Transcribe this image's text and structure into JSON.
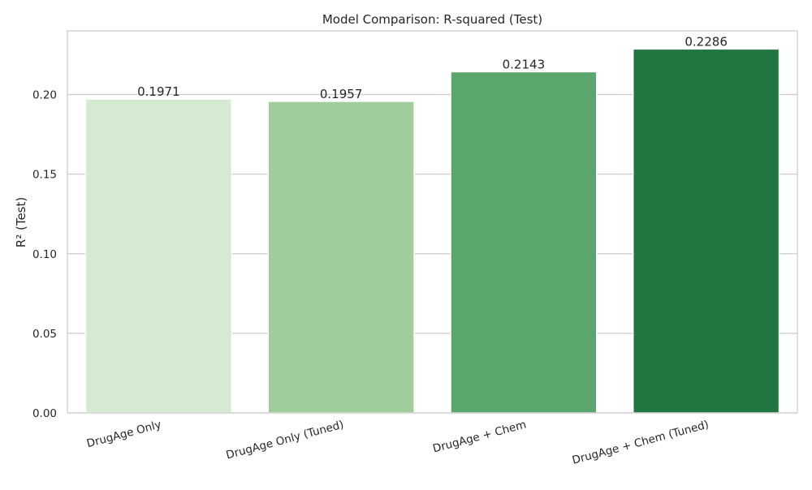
{
  "chart_data": {
    "type": "bar",
    "title": "Model Comparison: R-squared (Test)",
    "xlabel": "",
    "ylabel": "R² (Test)",
    "categories": [
      "DrugAge Only",
      "DrugAge Only (Tuned)",
      "DrugAge + Chem",
      "DrugAge + Chem (Tuned)"
    ],
    "values": [
      0.1971,
      0.1957,
      0.2143,
      0.2286
    ],
    "value_labels": [
      "0.1971",
      "0.1957",
      "0.2143",
      "0.2286"
    ],
    "bar_colors": [
      "#d5ebd1",
      "#a0ce9a",
      "#5aa66c",
      "#217540"
    ],
    "ylim": [
      0,
      0.24
    ],
    "yticks": [
      0.0,
      0.05,
      0.1,
      0.15,
      0.2
    ],
    "ytick_labels": [
      "0.00",
      "0.05",
      "0.10",
      "0.15",
      "0.20"
    ],
    "grid": true,
    "grid_axis": "y",
    "legend": "none"
  },
  "colors": {
    "grid": "#cccccc",
    "frame": "#cccccc",
    "text": "#262626",
    "background": "#ffffff"
  }
}
